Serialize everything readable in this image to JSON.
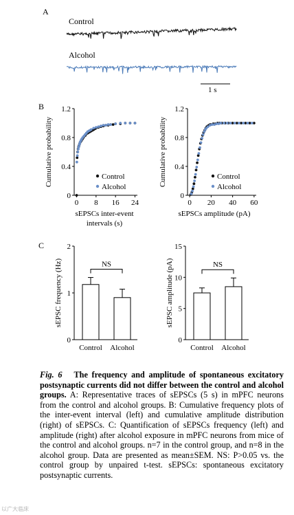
{
  "panels": {
    "a": "A",
    "b": "B",
    "c": "C"
  },
  "traces": {
    "control_label": "Control",
    "alcohol_label": "Alcohol",
    "scale_bar": "1 s",
    "colors": {
      "control": "#111111",
      "alcohol": "#4a7ab8"
    }
  },
  "chart_data": [
    {
      "id": "cdf-interval",
      "type": "scatter",
      "xlabel": "sEPSCs inter-event intervals (s)",
      "ylabel": "Cumulative probability",
      "xticks": [
        "0",
        "8",
        "16",
        "24"
      ],
      "yticks": [
        "0",
        "0.4",
        "0.8",
        "1.2"
      ],
      "xlim": [
        -1,
        25
      ],
      "ylim": [
        0,
        1.2
      ],
      "legend": "bottom-right",
      "series": [
        {
          "name": "Control",
          "color": "#111111",
          "x": [
            0,
            0.2,
            0.4,
            0.6,
            0.8,
            1.0,
            1.2,
            1.4,
            1.6,
            1.8,
            2.0,
            2.4,
            2.8,
            3.2,
            3.6,
            4.0,
            4.5,
            5.0,
            5.5,
            6.0,
            6.5,
            7.0,
            7.5,
            8.0,
            9.0,
            10.0,
            11.0,
            12.0,
            13.0,
            14.0,
            15.0,
            16.0,
            18.0,
            20.0,
            22.0,
            24.0
          ],
          "y": [
            0.0,
            0.52,
            0.6,
            0.64,
            0.67,
            0.69,
            0.71,
            0.73,
            0.74,
            0.75,
            0.76,
            0.78,
            0.8,
            0.82,
            0.83,
            0.85,
            0.86,
            0.87,
            0.88,
            0.89,
            0.9,
            0.91,
            0.92,
            0.93,
            0.94,
            0.95,
            0.96,
            0.97,
            0.97,
            0.98,
            0.98,
            0.99,
            0.99,
            1.0,
            1.0,
            1.0
          ]
        },
        {
          "name": "Alcohol",
          "color": "#6a8fc8",
          "x": [
            0.1,
            0.3,
            0.5,
            0.7,
            0.9,
            1.1,
            1.3,
            1.5,
            1.8,
            2.1,
            2.5,
            3.0,
            3.5,
            4.0,
            4.5,
            5.0,
            5.5,
            6.0,
            7.0,
            8.0,
            9.0,
            10.0,
            11.0,
            12.0,
            13.0,
            14.0,
            16.0,
            18.0,
            20.0,
            22.0,
            24.0
          ],
          "y": [
            0.46,
            0.55,
            0.6,
            0.64,
            0.67,
            0.7,
            0.72,
            0.74,
            0.76,
            0.78,
            0.8,
            0.82,
            0.84,
            0.86,
            0.88,
            0.89,
            0.9,
            0.91,
            0.93,
            0.94,
            0.95,
            0.96,
            0.97,
            0.97,
            0.98,
            0.98,
            0.99,
            1.0,
            1.0,
            1.0,
            1.0
          ]
        }
      ]
    },
    {
      "id": "cdf-amplitude",
      "type": "scatter",
      "xlabel": "sEPSCs amplitude (pA)",
      "ylabel": "Cumulative probability",
      "xticks": [
        "0",
        "20",
        "40",
        "60"
      ],
      "yticks": [
        "0",
        "0.4",
        "0.8",
        "1.2"
      ],
      "xlim": [
        -2,
        62
      ],
      "ylim": [
        0,
        1.2
      ],
      "legend": "bottom-right",
      "series": [
        {
          "name": "Control",
          "color": "#111111",
          "x": [
            1,
            2,
            3,
            4,
            5,
            6,
            7,
            8,
            9,
            10,
            11,
            12,
            13,
            14,
            15,
            16,
            17,
            18,
            19,
            20,
            22,
            24,
            26,
            28,
            30,
            33,
            36,
            40,
            44,
            48,
            52,
            56,
            60
          ],
          "y": [
            0.01,
            0.04,
            0.09,
            0.16,
            0.25,
            0.35,
            0.45,
            0.55,
            0.64,
            0.72,
            0.78,
            0.83,
            0.87,
            0.9,
            0.93,
            0.95,
            0.96,
            0.97,
            0.98,
            0.98,
            0.99,
            0.99,
            1.0,
            1.0,
            1.0,
            1.0,
            1.0,
            1.0,
            1.0,
            1.0,
            1.0,
            1.0,
            1.0
          ]
        },
        {
          "name": "Alcohol",
          "color": "#6a8fc8",
          "x": [
            1.5,
            2.5,
            3.5,
            4.5,
            5.5,
            6.5,
            7.5,
            8.5,
            9.5,
            10.5,
            11.5,
            12.5,
            13.5,
            14.5,
            15.5,
            17,
            19,
            21,
            23,
            25,
            27,
            29,
            32,
            35,
            38,
            42,
            46,
            50,
            54,
            58
          ],
          "y": [
            0.02,
            0.06,
            0.12,
            0.2,
            0.29,
            0.39,
            0.49,
            0.58,
            0.66,
            0.73,
            0.79,
            0.84,
            0.88,
            0.91,
            0.93,
            0.95,
            0.97,
            0.98,
            0.98,
            0.99,
            0.99,
            1.0,
            1.0,
            1.0,
            1.0,
            1.0,
            1.0,
            1.0,
            1.0,
            1.0
          ]
        }
      ]
    },
    {
      "id": "bar-frequency",
      "type": "bar",
      "ylabel": "sEPSC frequency (Hz)",
      "categories": [
        "Control",
        "Alcohol"
      ],
      "values": [
        1.18,
        0.9
      ],
      "errors": [
        0.15,
        0.18
      ],
      "yticks": [
        "0",
        "1",
        "2"
      ],
      "ylim": [
        0,
        2
      ],
      "significance": "NS"
    },
    {
      "id": "bar-amplitude",
      "type": "bar",
      "ylabel": "sEPSC amplitude (pA)",
      "categories": [
        "Control",
        "Alcohol"
      ],
      "values": [
        7.5,
        8.5
      ],
      "errors": [
        0.8,
        1.4
      ],
      "yticks": [
        "0",
        "5",
        "10",
        "15"
      ],
      "ylim": [
        0,
        15
      ],
      "significance": "NS"
    }
  ],
  "caption": {
    "fig_label": "Fig. 6",
    "title": "The frequency and amplitude of spontaneous excitatory postsynaptic currents did not differ between the control and alcohol groups.",
    "body": "A: Representative traces of sEPSCs (5 s) in mPFC neurons from the control and alcohol groups. B: Cumulative frequency plots of the inter-event interval (left) and cumulative amplitude distribution (right) of sEPSCs. C: Quantification of sEPSCs frequency (left) and amplitude (right) after alcohol exposure in mPFC neurons from mice of the control and alcohol groups. n=7 in the control group, and n=8 in the alcohol group. Data are presented as mean±SEM. NS: P>0.05 vs. the control group by unpaired t-test. sEPSCs: spontaneous excitatory postsynaptic currents."
  },
  "watermark": "以广大临床"
}
